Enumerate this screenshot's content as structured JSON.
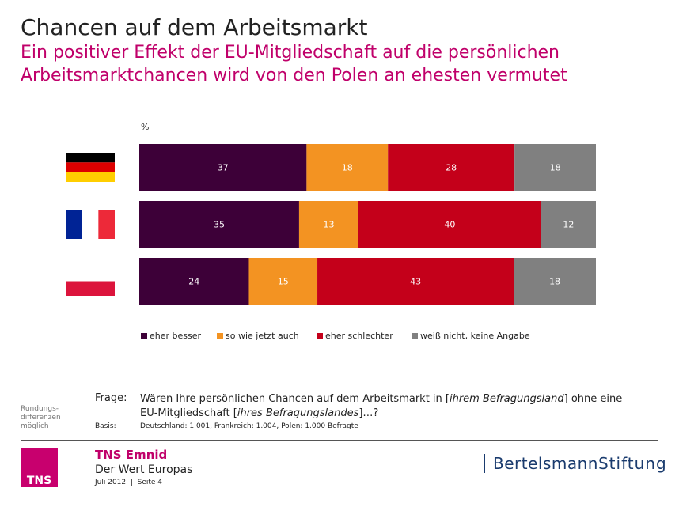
{
  "header": {
    "title": "Chancen auf dem Arbeitsmarkt",
    "subtitle_line1": "Ein positiver Effekt der EU-Mitgliedschaft auf die persönlichen",
    "subtitle_line2": "Arbeitsmarktchancen wird von den Polen an ehesten vermutet"
  },
  "chart_data": {
    "type": "bar",
    "orientation": "horizontal",
    "stacked": true,
    "normalized": true,
    "unit_label": "%",
    "categories": [
      "germany-flag-icon",
      "france-flag-icon",
      "poland-flag-icon"
    ],
    "series": [
      {
        "name": "eher besser",
        "color": "#3d0038",
        "values": [
          37,
          35,
          24
        ]
      },
      {
        "name": "so wie jetzt auch",
        "color": "#f39322",
        "values": [
          18,
          13,
          15
        ]
      },
      {
        "name": "eher schlechter",
        "color": "#c4001a",
        "values": [
          28,
          40,
          43
        ]
      },
      {
        "name": "weiß nicht, keine Angabe",
        "color": "#808080",
        "values": [
          18,
          12,
          18
        ]
      }
    ],
    "legend_position": "bottom",
    "grid": false
  },
  "notes": {
    "rounding_1": "Rundungs-",
    "rounding_2": "differenzen",
    "rounding_3": "möglich",
    "frage_label": "Frage:",
    "frage_a": "Wären Ihre persönlichen Chancen auf dem Arbeitsmarkt in [",
    "frage_b": "ihrem Befragungsland",
    "frage_c": "] ohne eine EU-Mitgliedschaft [",
    "frage_d": "ihres Befragungslandes",
    "frage_e": "]…?",
    "basis_label": "Basis:",
    "basis_text": "Deutschland: 1.001, Frankreich: 1.004, Polen: 1.000 Befragte"
  },
  "footer": {
    "tns_logo": "TNS",
    "company": "TNS Emnid",
    "project": "Der Wert Europas",
    "date": "Juli 2012  |  Seite 4",
    "partner_a": "Bertelsmann",
    "partner_b": "Stiftung"
  }
}
